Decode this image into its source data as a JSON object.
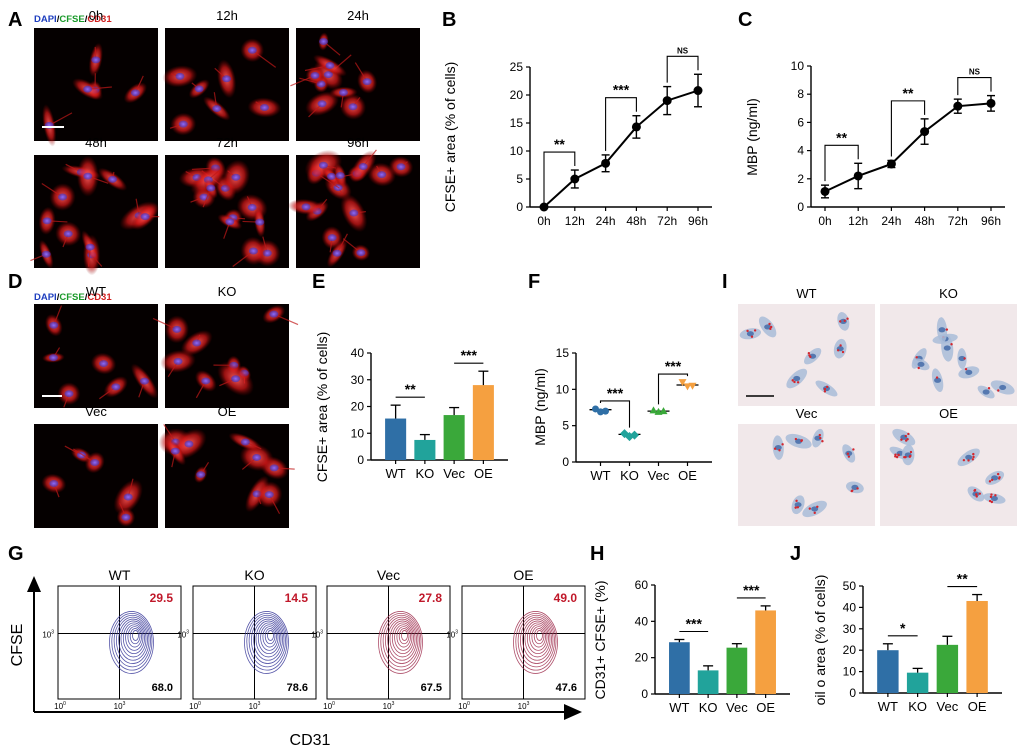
{
  "panel_letters": {
    "A": "A",
    "B": "B",
    "C": "C",
    "D": "D",
    "E": "E",
    "F": "F",
    "G": "G",
    "H": "H",
    "I": "I",
    "J": "J"
  },
  "stain_legend": {
    "dapi": "DAPI",
    "sep1": "/",
    "cfse": "CFSE",
    "sep2": "/",
    "cd31": "CD31"
  },
  "colors": {
    "dapi": "#1f3fbf",
    "cfse": "#1a9a2a",
    "cd31": "#d21f1f",
    "flow_pct": "#c0182a",
    "wt": "#2f6fa6",
    "ko": "#21a39b",
    "vec": "#3aa83a",
    "oe": "#f5a040"
  },
  "panel_a": {
    "timepoints": [
      "0h",
      "12h",
      "24h",
      "48h",
      "72h",
      "96h"
    ]
  },
  "panel_d": {
    "groups": [
      "WT",
      "KO",
      "Vec",
      "OE"
    ]
  },
  "panel_i": {
    "groups": [
      "WT",
      "KO",
      "Vec",
      "OE"
    ]
  },
  "panel_g": {
    "y_axis_label": "CFSE",
    "x_axis_label": "CD31",
    "plots": [
      {
        "group": "WT",
        "upper_right": "29.5",
        "lower_right": "68.0",
        "contour": "#3a3a9a"
      },
      {
        "group": "KO",
        "upper_right": "14.5",
        "lower_right": "78.6",
        "contour": "#3a3a9a"
      },
      {
        "group": "Vec",
        "upper_right": "27.8",
        "lower_right": "67.5",
        "contour": "#a03050"
      },
      {
        "group": "OE",
        "upper_right": "49.0",
        "lower_right": "47.6",
        "contour": "#a03050"
      }
    ],
    "tick_labels": {
      "e0": "10",
      "s0": "0",
      "e3": "10",
      "s3": "3"
    }
  },
  "chart_data": [
    {
      "panel": "B",
      "type": "line",
      "x": [
        "0h",
        "12h",
        "24h",
        "48h",
        "72h",
        "96h"
      ],
      "y": [
        0,
        5,
        7.8,
        14.3,
        19,
        20.8
      ],
      "err": [
        0,
        1.6,
        1.5,
        2,
        2.5,
        2.9
      ],
      "ylabel": "CFSE+ area (% of cells)",
      "ylim": [
        0,
        25
      ],
      "yticks": [
        0,
        5,
        10,
        15,
        20,
        25
      ],
      "sig": [
        {
          "from": "0h",
          "to": "12h",
          "label": "**"
        },
        {
          "from": "24h",
          "to": "48h",
          "label": "***"
        },
        {
          "from": "72h",
          "to": "96h",
          "label": "NS"
        }
      ]
    },
    {
      "panel": "C",
      "type": "line",
      "x": [
        "0h",
        "12h",
        "24h",
        "48h",
        "72h",
        "96h"
      ],
      "y": [
        1.1,
        2.2,
        3.05,
        5.35,
        7.15,
        7.35
      ],
      "err": [
        0.45,
        0.9,
        0.25,
        0.9,
        0.5,
        0.55
      ],
      "ylabel": "MBP (ng/ml)",
      "ylim": [
        0,
        10
      ],
      "yticks": [
        0,
        2,
        4,
        6,
        8,
        10
      ],
      "sig": [
        {
          "from": "0h",
          "to": "12h",
          "label": "**"
        },
        {
          "from": "24h",
          "to": "48h",
          "label": "**"
        },
        {
          "from": "72h",
          "to": "96h",
          "label": "NS"
        }
      ]
    },
    {
      "panel": "E",
      "type": "bar",
      "categories": [
        "WT",
        "KO",
        "Vec",
        "OE"
      ],
      "values": [
        15.5,
        7.5,
        16.8,
        28
      ],
      "err": [
        5,
        2,
        2.8,
        5.2
      ],
      "ylabel": "CFSE+ area (% of cells)",
      "ylim": [
        0,
        40
      ],
      "yticks": [
        0,
        10,
        20,
        30,
        40
      ],
      "sig": [
        {
          "from": "WT",
          "to": "KO",
          "label": "**"
        },
        {
          "from": "Vec",
          "to": "OE",
          "label": "***"
        }
      ]
    },
    {
      "panel": "F",
      "type": "scatter",
      "categories": [
        "WT",
        "KO",
        "Vec",
        "OE"
      ],
      "means": [
        7.2,
        3.8,
        7.0,
        10.6
      ],
      "points": [
        [
          7.3,
          6.9,
          7.0
        ],
        [
          3.9,
          3.5,
          3.7
        ],
        [
          7.1,
          6.9,
          7.0
        ],
        [
          11.0,
          10.4,
          10.5
        ]
      ],
      "ylabel": "MBP (ng/ml)",
      "ylim": [
        0,
        15
      ],
      "yticks": [
        0,
        5,
        10,
        15
      ],
      "sig": [
        {
          "from": "WT",
          "to": "KO",
          "label": "***"
        },
        {
          "from": "Vec",
          "to": "OE",
          "label": "***"
        }
      ]
    },
    {
      "panel": "H",
      "type": "bar",
      "categories": [
        "WT",
        "KO",
        "Vec",
        "OE"
      ],
      "values": [
        28.5,
        13,
        25.5,
        46
      ],
      "err": [
        1.5,
        2.5,
        2.2,
        2.5
      ],
      "ylabel": "CD31+ CFSE+ (%)",
      "ylim": [
        0,
        60
      ],
      "yticks": [
        0,
        20,
        40,
        60
      ],
      "sig": [
        {
          "from": "WT",
          "to": "KO",
          "label": "***"
        },
        {
          "from": "Vec",
          "to": "OE",
          "label": "***"
        }
      ]
    },
    {
      "panel": "J",
      "type": "bar",
      "categories": [
        "WT",
        "KO",
        "Vec",
        "OE"
      ],
      "values": [
        20,
        9.5,
        22.5,
        43
      ],
      "err": [
        3,
        2,
        4,
        3
      ],
      "ylabel": "oil o area (% of cells)",
      "ylim": [
        0,
        50
      ],
      "yticks": [
        0,
        10,
        20,
        30,
        40,
        50
      ],
      "sig": [
        {
          "from": "WT",
          "to": "KO",
          "label": "*"
        },
        {
          "from": "Vec",
          "to": "OE",
          "label": "**"
        }
      ]
    }
  ]
}
